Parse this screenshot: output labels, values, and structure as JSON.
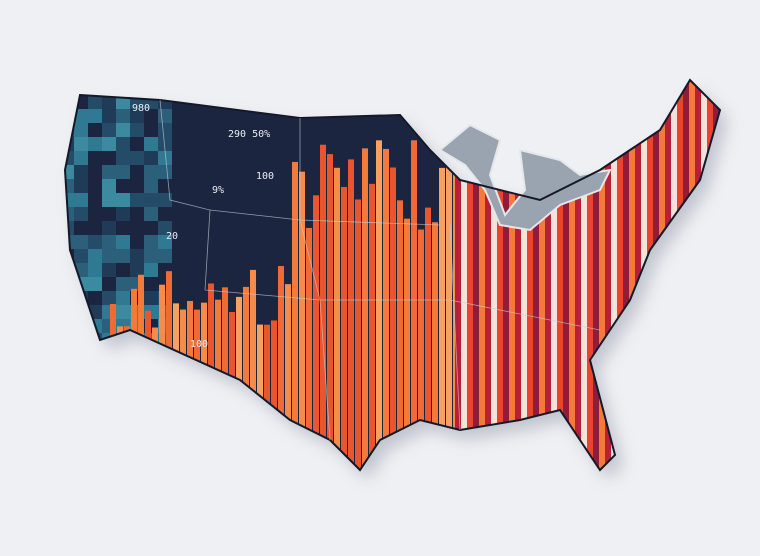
{
  "map": {
    "labels": [
      "980",
      "290 50%",
      "100",
      "9%",
      "20",
      "100"
    ]
  }
}
